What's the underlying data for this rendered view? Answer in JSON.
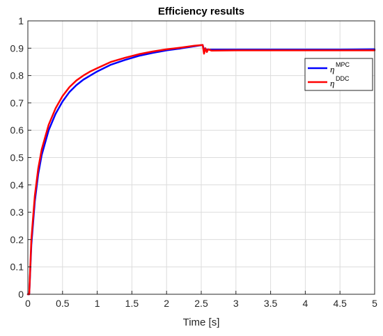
{
  "chart_data": {
    "type": "line",
    "title": "Efficiency results",
    "xlabel": "Time [s]",
    "ylabel": "",
    "xlim": [
      0,
      5
    ],
    "ylim": [
      0,
      1
    ],
    "grid": true,
    "legend_position": "top-right",
    "x_ticks": [
      0,
      0.5,
      1,
      1.5,
      2,
      2.5,
      3,
      3.5,
      4,
      4.5,
      5
    ],
    "x_tick_labels": [
      "0",
      "0.5",
      "1",
      "1.5",
      "2",
      "2.5",
      "3",
      "3.5",
      "4",
      "4.5",
      "5"
    ],
    "y_ticks": [
      0,
      0.1,
      0.2,
      0.3,
      0.4,
      0.5,
      0.6,
      0.7,
      0.8,
      0.9,
      1
    ],
    "y_tick_labels": [
      "0",
      "0.1",
      "0.2",
      "0.3",
      "0.4",
      "0.5",
      "0.6",
      "0.7",
      "0.8",
      "0.9",
      "1"
    ],
    "series": [
      {
        "legend_base": "η",
        "legend_sup": "MPC",
        "color": "#0000ff",
        "x": [
          0,
          0.02,
          0.05,
          0.1,
          0.15,
          0.2,
          0.3,
          0.4,
          0.5,
          0.6,
          0.7,
          0.8,
          0.9,
          1.0,
          1.2,
          1.4,
          1.6,
          1.8,
          2.0,
          2.2,
          2.4,
          2.52,
          2.54,
          2.6,
          3.0,
          3.5,
          4.0,
          4.5,
          5.0
        ],
        "y": [
          0,
          0.0,
          0.18,
          0.34,
          0.44,
          0.51,
          0.6,
          0.66,
          0.705,
          0.74,
          0.765,
          0.785,
          0.8,
          0.815,
          0.84,
          0.857,
          0.872,
          0.883,
          0.892,
          0.899,
          0.907,
          0.912,
          0.895,
          0.895,
          0.895,
          0.895,
          0.895,
          0.895,
          0.896
        ]
      },
      {
        "legend_base": "η",
        "legend_sup": "DDC",
        "color": "#ff0000",
        "x": [
          0,
          0.02,
          0.05,
          0.1,
          0.15,
          0.2,
          0.3,
          0.4,
          0.5,
          0.6,
          0.7,
          0.8,
          0.9,
          1.0,
          1.2,
          1.4,
          1.6,
          1.8,
          2.0,
          2.2,
          2.4,
          2.52,
          2.54,
          2.56,
          2.58,
          2.6,
          2.65,
          3.0,
          3.5,
          4.0,
          4.5,
          5.0
        ],
        "y": [
          0,
          0.0,
          0.2,
          0.36,
          0.46,
          0.53,
          0.62,
          0.68,
          0.725,
          0.758,
          0.782,
          0.8,
          0.815,
          0.827,
          0.85,
          0.865,
          0.878,
          0.888,
          0.896,
          0.902,
          0.909,
          0.912,
          0.88,
          0.9,
          0.886,
          0.896,
          0.891,
          0.892,
          0.892,
          0.892,
          0.892,
          0.892
        ]
      }
    ]
  }
}
